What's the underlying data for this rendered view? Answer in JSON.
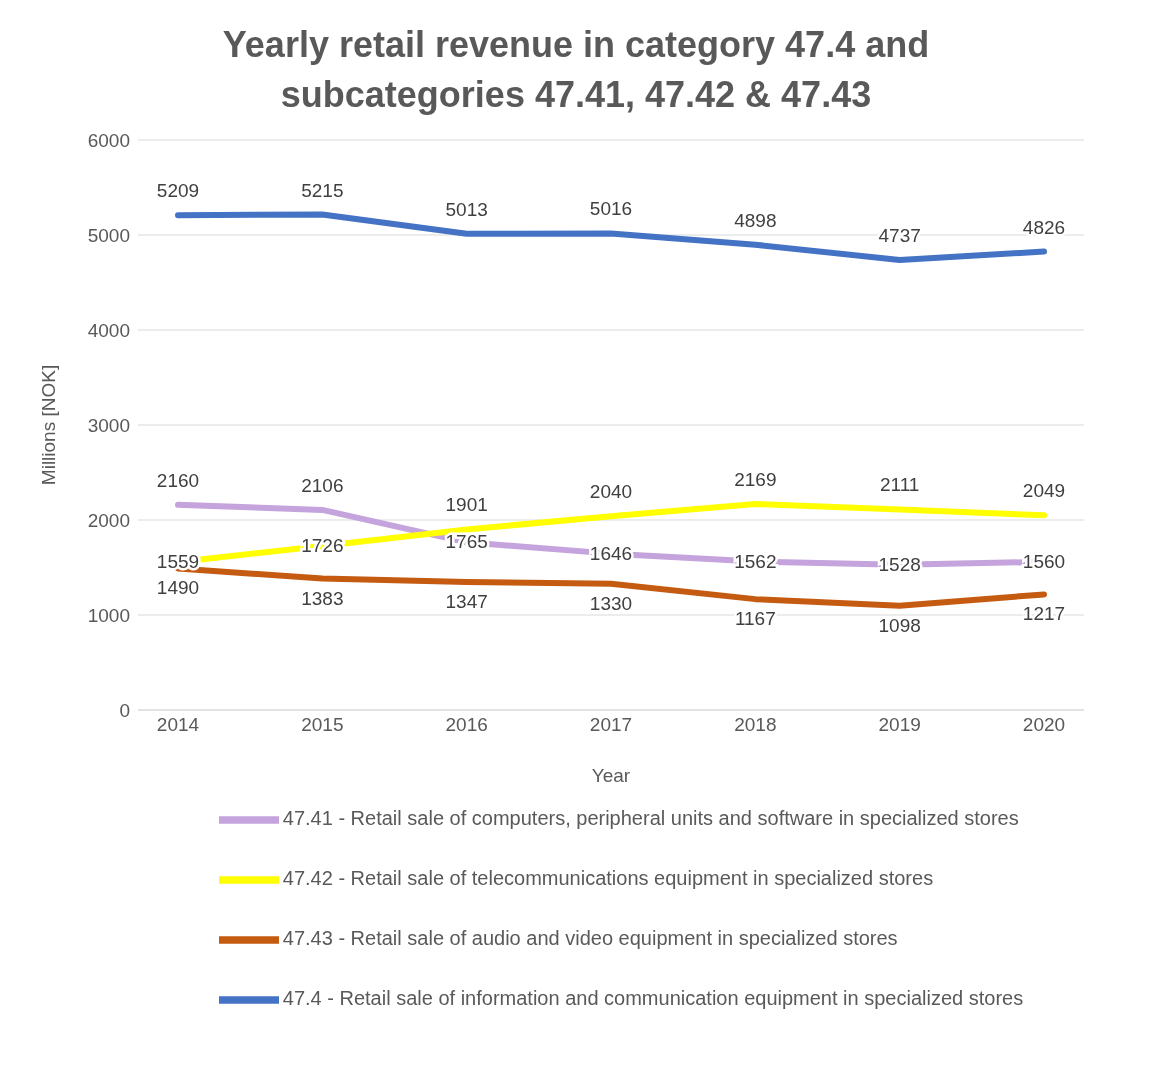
{
  "chart_data": {
    "type": "line",
    "title": "Yearly retail revenue in category 47.4 and subcategories 47.41, 47.42 & 47.43",
    "xlabel": "Year",
    "ylabel": "Millions [NOK]",
    "categories": [
      "2014",
      "2015",
      "2016",
      "2017",
      "2018",
      "2019",
      "2020"
    ],
    "series": [
      {
        "name": "47.41 - Retail sale of computers, peripheral units and software in specialized stores",
        "color": "#c5a3dc",
        "values": [
          2160,
          2106,
          1765,
          1646,
          1562,
          1528,
          1560
        ]
      },
      {
        "name": "47.42 - Retail sale of telecommunications equipment in specialized stores",
        "color": "#ffff00",
        "values": [
          1559,
          1726,
          1901,
          2040,
          2169,
          2111,
          2049
        ]
      },
      {
        "name": "47.43 - Retail sale of audio and video equipment in specialized stores",
        "color": "#c55a11",
        "values": [
          1490,
          1383,
          1347,
          1330,
          1167,
          1098,
          1217
        ]
      },
      {
        "name": "47.4 - Retail sale of information and communication equipment in specialized stores",
        "color": "#4472c4",
        "values": [
          5209,
          5215,
          5013,
          5016,
          4898,
          4737,
          4826
        ]
      }
    ],
    "ylim": [
      0,
      6000
    ],
    "yticks": [
      0,
      1000,
      2000,
      3000,
      4000,
      5000,
      6000
    ],
    "grid": "y",
    "legend": "bottom",
    "marker": "none",
    "line_style": "solid",
    "data_labels": true
  }
}
